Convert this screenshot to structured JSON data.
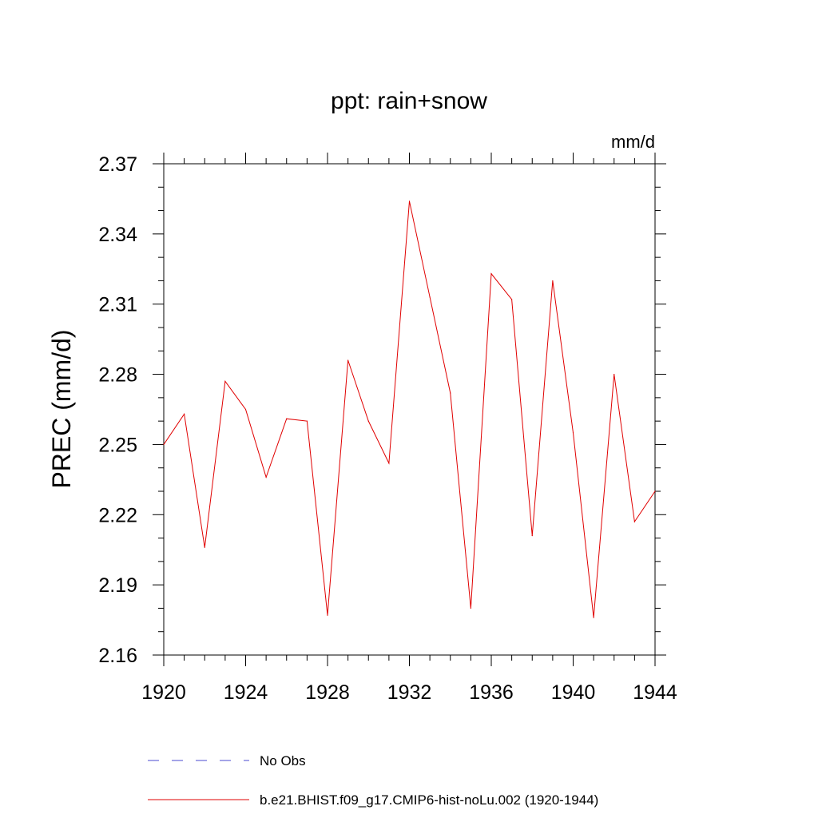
{
  "chart_data": {
    "type": "line",
    "title": "ppt: rain+snow",
    "units": "mm/d",
    "ylabel": "PREC  (mm/d)",
    "xlabel": "",
    "xlim": [
      1920,
      1944
    ],
    "ylim": [
      2.16,
      2.37
    ],
    "x_ticks": [
      1920,
      1924,
      1928,
      1932,
      1936,
      1940,
      1944
    ],
    "x_tick_labels": [
      "1920",
      "1924",
      "1928",
      "1932",
      "1936",
      "1940",
      "1944"
    ],
    "y_ticks": [
      2.16,
      2.19,
      2.22,
      2.25,
      2.28,
      2.31,
      2.34,
      2.37
    ],
    "y_tick_labels": [
      "2.16",
      "2.19",
      "2.22",
      "2.25",
      "2.28",
      "2.31",
      "2.34",
      "2.37"
    ],
    "grid": false,
    "legend_position": "bottom",
    "series": [
      {
        "name": "No Obs",
        "color": "#4a4ad0",
        "style": "dashed",
        "x": [],
        "values": []
      },
      {
        "name": "b.e21.BHIST.f09_g17.CMIP6-hist-noLu.002 (1920-1944)",
        "color": "#e00000",
        "style": "solid",
        "x": [
          1920,
          1921,
          1922,
          1923,
          1924,
          1925,
          1926,
          1927,
          1928,
          1929,
          1930,
          1931,
          1932,
          1933,
          1934,
          1935,
          1936,
          1937,
          1938,
          1939,
          1940,
          1941,
          1942,
          1943,
          1944
        ],
        "values": [
          2.25,
          2.263,
          2.206,
          2.277,
          2.265,
          2.236,
          2.261,
          2.26,
          2.177,
          2.286,
          2.26,
          2.242,
          2.354,
          2.313,
          2.272,
          2.18,
          2.323,
          2.312,
          2.211,
          2.32,
          2.255,
          2.176,
          2.28,
          2.217,
          2.23
        ]
      }
    ]
  }
}
